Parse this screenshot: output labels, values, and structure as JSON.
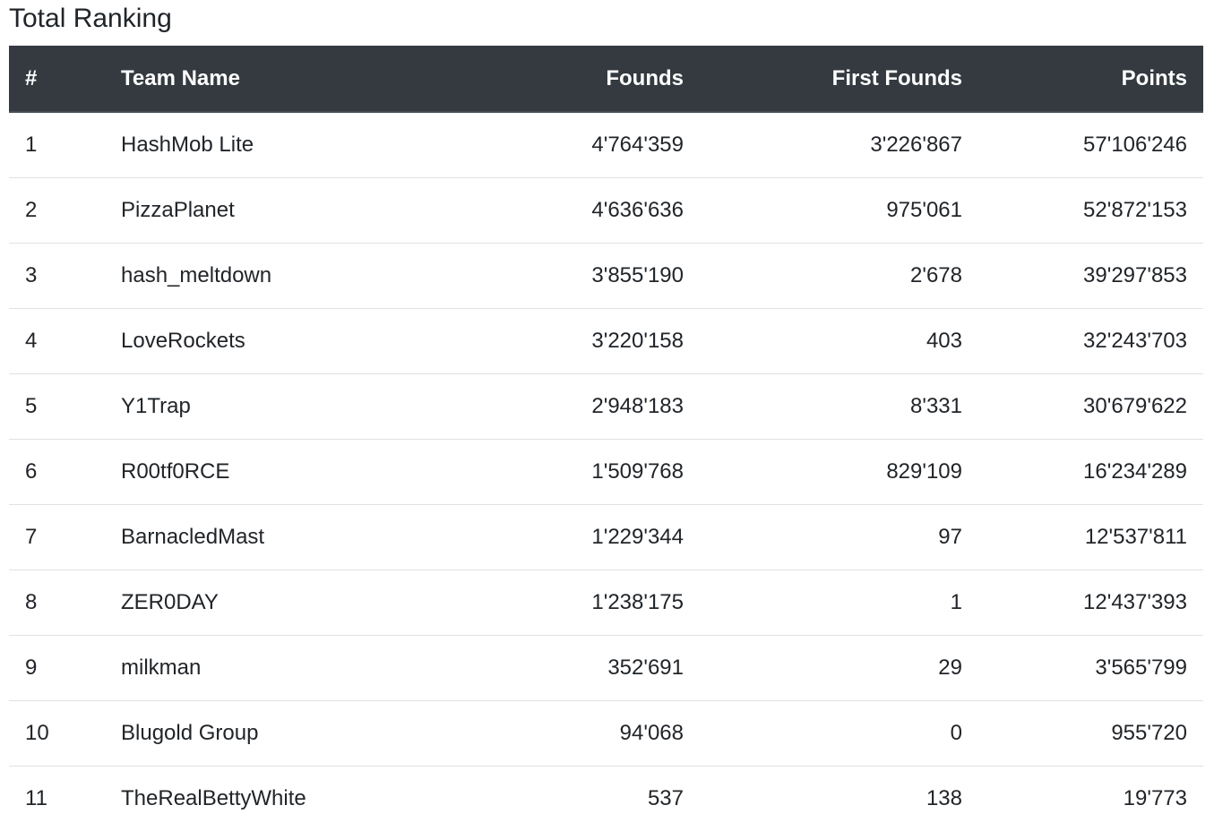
{
  "page": {
    "title": "Total Ranking"
  },
  "table": {
    "headers": {
      "rank": "#",
      "team": "Team Name",
      "founds": "Founds",
      "first_founds": "First Founds",
      "points": "Points"
    },
    "rows": [
      {
        "rank": "1",
        "team": "HashMob Lite",
        "founds": "4'764'359",
        "first_founds": "3'226'867",
        "points": "57'106'246"
      },
      {
        "rank": "2",
        "team": "PizzaPlanet",
        "founds": "4'636'636",
        "first_founds": "975'061",
        "points": "52'872'153"
      },
      {
        "rank": "3",
        "team": "hash_meltdown",
        "founds": "3'855'190",
        "first_founds": "2'678",
        "points": "39'297'853"
      },
      {
        "rank": "4",
        "team": "LoveRockets",
        "founds": "3'220'158",
        "first_founds": "403",
        "points": "32'243'703"
      },
      {
        "rank": "5",
        "team": "Y1Trap",
        "founds": "2'948'183",
        "first_founds": "8'331",
        "points": "30'679'622"
      },
      {
        "rank": "6",
        "team": "R00tf0RCE",
        "founds": "1'509'768",
        "first_founds": "829'109",
        "points": "16'234'289"
      },
      {
        "rank": "7",
        "team": "BarnacledMast",
        "founds": "1'229'344",
        "first_founds": "97",
        "points": "12'537'811"
      },
      {
        "rank": "8",
        "team": "ZER0DAY",
        "founds": "1'238'175",
        "first_founds": "1",
        "points": "12'437'393"
      },
      {
        "rank": "9",
        "team": "milkman",
        "founds": "352'691",
        "first_founds": "29",
        "points": "3'565'799"
      },
      {
        "rank": "10",
        "team": "Blugold Group",
        "founds": "94'068",
        "first_founds": "0",
        "points": "955'720"
      },
      {
        "rank": "11",
        "team": "TheRealBettyWhite",
        "founds": "537",
        "first_founds": "138",
        "points": "19'773"
      }
    ]
  },
  "colors": {
    "header_bg": "#343a40",
    "header_text": "#ffffff",
    "row_border": "#dee2e6",
    "text": "#212529"
  }
}
